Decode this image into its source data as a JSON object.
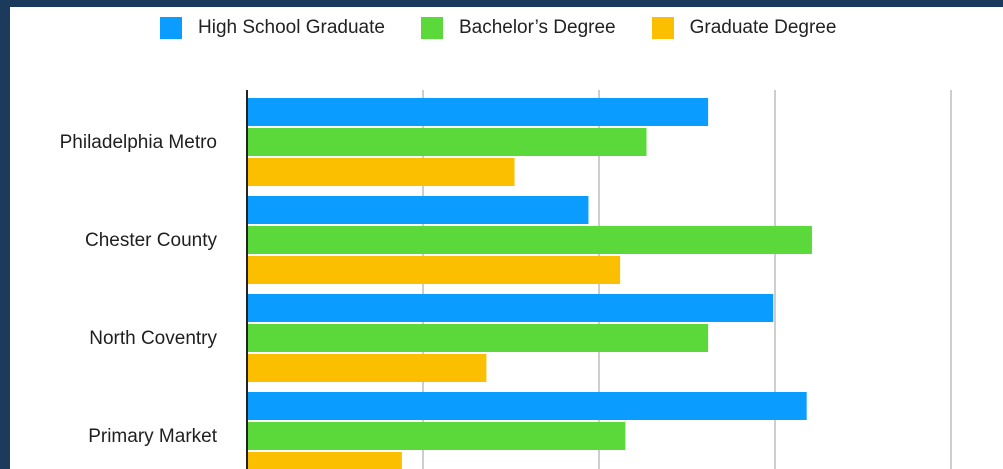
{
  "chart_data": {
    "type": "bar",
    "orientation": "horizontal",
    "categories": [
      "Philadelphia Metro",
      "Chester County",
      "North Coventry",
      "Primary Market"
    ],
    "series": [
      {
        "name": "High School Graduate",
        "color": "#0a9cff",
        "values": [
          26.2,
          19.4,
          29.9,
          31.8
        ]
      },
      {
        "name": "Bachelor’s Degree",
        "color": "#5cd93a",
        "values": [
          22.7,
          32.1,
          26.2,
          21.5
        ]
      },
      {
        "name": "Graduate Degree",
        "color": "#fbbf00",
        "values": [
          15.2,
          21.2,
          13.6,
          8.8
        ]
      }
    ],
    "xlim": [
      0,
      40
    ],
    "x_gridlines": [
      10,
      20,
      30,
      40
    ],
    "grid": true,
    "legend_position": "top"
  }
}
